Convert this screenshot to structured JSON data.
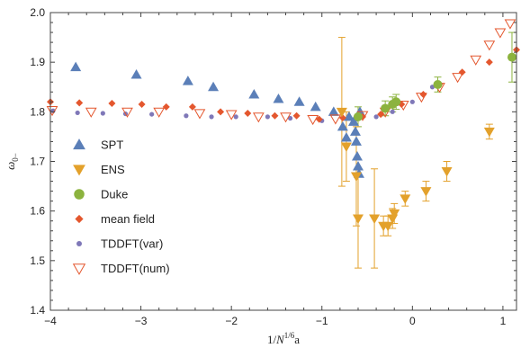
{
  "chart_data": {
    "type": "scatter",
    "title": "",
    "xlabel": "1/N^{1/6}a",
    "xlabel_parts": {
      "base": "1/",
      "var": "N",
      "sup": "1/6",
      "tail": "a"
    },
    "ylabel": "ω0−",
    "ylabel_parts": {
      "base": "ω",
      "sub": "0−"
    },
    "xlim": [
      -4,
      1.15
    ],
    "ylim": [
      1.4,
      2.0
    ],
    "xticks": [
      {
        "value": -4,
        "label": "−4"
      },
      {
        "value": -3,
        "label": "−3"
      },
      {
        "value": -2,
        "label": "−2"
      },
      {
        "value": -1,
        "label": "−1"
      },
      {
        "value": 0,
        "label": "0"
      },
      {
        "value": 1,
        "label": "1"
      }
    ],
    "yticks": [
      {
        "value": 1.4,
        "label": "1.4"
      },
      {
        "value": 1.5,
        "label": "1.5"
      },
      {
        "value": 1.6,
        "label": "1.6"
      },
      {
        "value": 1.7,
        "label": "1.7"
      },
      {
        "value": 1.8,
        "label": "1.8"
      },
      {
        "value": 1.9,
        "label": "1.9"
      },
      {
        "value": 2.0,
        "label": "2.0"
      }
    ],
    "grid": false,
    "legend_position": "left",
    "series": [
      {
        "name": "SPT",
        "marker": "triangle-up",
        "color": "#5b7fb8",
        "points": [
          {
            "x": -3.72,
            "y": 1.89
          },
          {
            "x": -3.05,
            "y": 1.875
          },
          {
            "x": -2.48,
            "y": 1.862
          },
          {
            "x": -2.2,
            "y": 1.85
          },
          {
            "x": -1.75,
            "y": 1.835
          },
          {
            "x": -1.48,
            "y": 1.826
          },
          {
            "x": -1.25,
            "y": 1.82
          },
          {
            "x": -1.07,
            "y": 1.81
          },
          {
            "x": -0.87,
            "y": 1.8
          },
          {
            "x": -0.77,
            "y": 1.77
          },
          {
            "x": -0.73,
            "y": 1.748
          },
          {
            "x": -0.7,
            "y": 1.79
          },
          {
            "x": -0.65,
            "y": 1.78
          },
          {
            "x": -0.63,
            "y": 1.76
          },
          {
            "x": -0.62,
            "y": 1.74
          },
          {
            "x": -0.61,
            "y": 1.71
          },
          {
            "x": -0.6,
            "y": 1.69
          },
          {
            "x": -0.59,
            "y": 1.675
          },
          {
            "x": -0.58,
            "y": 1.8
          }
        ]
      },
      {
        "name": "ENS",
        "marker": "triangle-down",
        "color": "#e3a12b",
        "points": [
          {
            "x": -0.78,
            "y": 1.8,
            "err": 0.15
          },
          {
            "x": -0.73,
            "y": 1.73,
            "err": 0.07
          },
          {
            "x": -0.62,
            "y": 1.67,
            "err": 0.1
          },
          {
            "x": -0.6,
            "y": 1.585,
            "err": 0.1
          },
          {
            "x": -0.42,
            "y": 1.585,
            "err": 0.1
          },
          {
            "x": -0.32,
            "y": 1.57,
            "err": 0.02
          },
          {
            "x": -0.27,
            "y": 1.57,
            "err": 0.02
          },
          {
            "x": -0.22,
            "y": 1.585,
            "err": 0.02
          },
          {
            "x": -0.2,
            "y": 1.595,
            "err": 0.02
          },
          {
            "x": -0.08,
            "y": 1.625,
            "err": 0.015
          },
          {
            "x": 0.15,
            "y": 1.64,
            "err": 0.02
          },
          {
            "x": 0.38,
            "y": 1.68,
            "err": 0.02
          },
          {
            "x": 0.85,
            "y": 1.76,
            "err": 0.015
          }
        ]
      },
      {
        "name": "Duke",
        "marker": "circle",
        "color": "#8cb33e",
        "points": [
          {
            "x": -0.6,
            "y": 1.79,
            "err": 0.02
          },
          {
            "x": -0.3,
            "y": 1.807,
            "err": 0.015
          },
          {
            "x": -0.22,
            "y": 1.815,
            "err": 0.015
          },
          {
            "x": -0.18,
            "y": 1.82,
            "err": 0.015
          },
          {
            "x": 0.28,
            "y": 1.855,
            "err": 0.015
          },
          {
            "x": 1.1,
            "y": 1.91,
            "err": 0.05
          }
        ]
      },
      {
        "name": "mean field",
        "marker": "diamond",
        "color": "#e4572e",
        "points": [
          {
            "x": -4.0,
            "y": 1.82
          },
          {
            "x": -3.68,
            "y": 1.818
          },
          {
            "x": -3.32,
            "y": 1.817
          },
          {
            "x": -2.99,
            "y": 1.815
          },
          {
            "x": -2.72,
            "y": 1.81
          },
          {
            "x": -2.43,
            "y": 1.81
          },
          {
            "x": -2.12,
            "y": 1.8
          },
          {
            "x": -1.82,
            "y": 1.797
          },
          {
            "x": -1.52,
            "y": 1.792
          },
          {
            "x": -1.28,
            "y": 1.792
          },
          {
            "x": -1.03,
            "y": 1.785
          },
          {
            "x": -0.77,
            "y": 1.788
          },
          {
            "x": -0.55,
            "y": 1.79
          },
          {
            "x": -0.35,
            "y": 1.795
          },
          {
            "x": -0.12,
            "y": 1.815
          },
          {
            "x": 0.12,
            "y": 1.835
          },
          {
            "x": 0.3,
            "y": 1.856
          },
          {
            "x": 0.55,
            "y": 1.88
          },
          {
            "x": 0.85,
            "y": 1.9
          },
          {
            "x": 1.15,
            "y": 1.925
          }
        ]
      },
      {
        "name": "TDDFT(var)",
        "marker": "small-circle",
        "color": "#7f78b8",
        "points": [
          {
            "x": -3.97,
            "y": 1.802
          },
          {
            "x": -3.7,
            "y": 1.798
          },
          {
            "x": -3.42,
            "y": 1.797
          },
          {
            "x": -3.17,
            "y": 1.796
          },
          {
            "x": -2.88,
            "y": 1.795
          },
          {
            "x": -2.5,
            "y": 1.792
          },
          {
            "x": -2.22,
            "y": 1.79
          },
          {
            "x": -1.95,
            "y": 1.79
          },
          {
            "x": -1.6,
            "y": 1.79
          },
          {
            "x": -1.35,
            "y": 1.787
          },
          {
            "x": -1.0,
            "y": 1.782
          },
          {
            "x": -0.62,
            "y": 1.785
          },
          {
            "x": -0.4,
            "y": 1.79
          },
          {
            "x": -0.22,
            "y": 1.8
          },
          {
            "x": 0.0,
            "y": 1.82
          },
          {
            "x": 0.22,
            "y": 1.85
          }
        ]
      },
      {
        "name": "TDDFT(num)",
        "marker": "open-triangle-down",
        "color": "#e4572e",
        "points": [
          {
            "x": -3.98,
            "y": 1.803
          },
          {
            "x": -3.55,
            "y": 1.8
          },
          {
            "x": -3.15,
            "y": 1.8
          },
          {
            "x": -2.8,
            "y": 1.8
          },
          {
            "x": -2.35,
            "y": 1.797
          },
          {
            "x": -2.0,
            "y": 1.795
          },
          {
            "x": -1.7,
            "y": 1.79
          },
          {
            "x": -1.4,
            "y": 1.79
          },
          {
            "x": -1.1,
            "y": 1.785
          },
          {
            "x": -0.85,
            "y": 1.786
          },
          {
            "x": -0.55,
            "y": 1.793
          },
          {
            "x": -0.3,
            "y": 1.8
          },
          {
            "x": -0.1,
            "y": 1.814
          },
          {
            "x": 0.1,
            "y": 1.83
          },
          {
            "x": 0.3,
            "y": 1.85
          },
          {
            "x": 0.5,
            "y": 1.87
          },
          {
            "x": 0.7,
            "y": 1.905
          },
          {
            "x": 0.85,
            "y": 1.935
          },
          {
            "x": 0.97,
            "y": 1.96
          },
          {
            "x": 1.08,
            "y": 1.978
          }
        ]
      }
    ]
  }
}
